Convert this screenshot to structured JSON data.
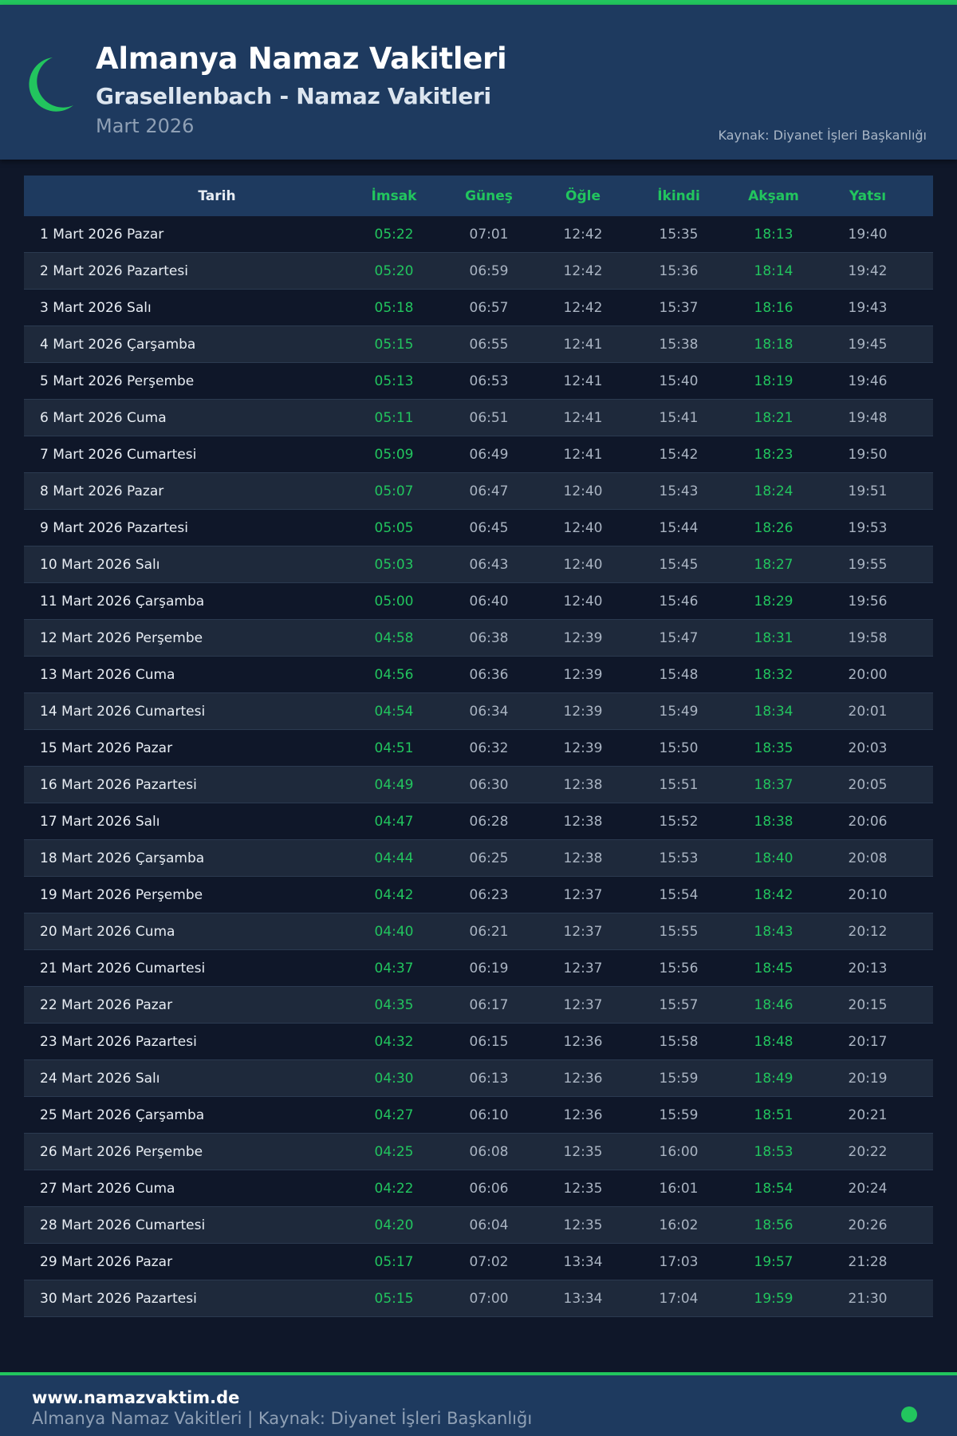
{
  "colors": {
    "accent": "#22c55e",
    "header_bg": "#1e3a5f",
    "page_bg": "#0f1729"
  },
  "header": {
    "icon": "crescent-moon-icon",
    "title": "Almanya Namaz Vakitleri",
    "subtitle": "Grasellenbach - Namaz Vakitleri",
    "month": "Mart 2026",
    "source": "Kaynak: Diyanet İşleri Başkanlığı"
  },
  "table": {
    "columns": [
      "Tarih",
      "İmsak",
      "Güneş",
      "Öğle",
      "İkindi",
      "Akşam",
      "Yatsı"
    ],
    "rows": [
      [
        "1 Mart 2026 Pazar",
        "05:22",
        "07:01",
        "12:42",
        "15:35",
        "18:13",
        "19:40"
      ],
      [
        "2 Mart 2026 Pazartesi",
        "05:20",
        "06:59",
        "12:42",
        "15:36",
        "18:14",
        "19:42"
      ],
      [
        "3 Mart 2026 Salı",
        "05:18",
        "06:57",
        "12:42",
        "15:37",
        "18:16",
        "19:43"
      ],
      [
        "4 Mart 2026 Çarşamba",
        "05:15",
        "06:55",
        "12:41",
        "15:38",
        "18:18",
        "19:45"
      ],
      [
        "5 Mart 2026 Perşembe",
        "05:13",
        "06:53",
        "12:41",
        "15:40",
        "18:19",
        "19:46"
      ],
      [
        "6 Mart 2026 Cuma",
        "05:11",
        "06:51",
        "12:41",
        "15:41",
        "18:21",
        "19:48"
      ],
      [
        "7 Mart 2026 Cumartesi",
        "05:09",
        "06:49",
        "12:41",
        "15:42",
        "18:23",
        "19:50"
      ],
      [
        "8 Mart 2026 Pazar",
        "05:07",
        "06:47",
        "12:40",
        "15:43",
        "18:24",
        "19:51"
      ],
      [
        "9 Mart 2026 Pazartesi",
        "05:05",
        "06:45",
        "12:40",
        "15:44",
        "18:26",
        "19:53"
      ],
      [
        "10 Mart 2026 Salı",
        "05:03",
        "06:43",
        "12:40",
        "15:45",
        "18:27",
        "19:55"
      ],
      [
        "11 Mart 2026 Çarşamba",
        "05:00",
        "06:40",
        "12:40",
        "15:46",
        "18:29",
        "19:56"
      ],
      [
        "12 Mart 2026 Perşembe",
        "04:58",
        "06:38",
        "12:39",
        "15:47",
        "18:31",
        "19:58"
      ],
      [
        "13 Mart 2026 Cuma",
        "04:56",
        "06:36",
        "12:39",
        "15:48",
        "18:32",
        "20:00"
      ],
      [
        "14 Mart 2026 Cumartesi",
        "04:54",
        "06:34",
        "12:39",
        "15:49",
        "18:34",
        "20:01"
      ],
      [
        "15 Mart 2026 Pazar",
        "04:51",
        "06:32",
        "12:39",
        "15:50",
        "18:35",
        "20:03"
      ],
      [
        "16 Mart 2026 Pazartesi",
        "04:49",
        "06:30",
        "12:38",
        "15:51",
        "18:37",
        "20:05"
      ],
      [
        "17 Mart 2026 Salı",
        "04:47",
        "06:28",
        "12:38",
        "15:52",
        "18:38",
        "20:06"
      ],
      [
        "18 Mart 2026 Çarşamba",
        "04:44",
        "06:25",
        "12:38",
        "15:53",
        "18:40",
        "20:08"
      ],
      [
        "19 Mart 2026 Perşembe",
        "04:42",
        "06:23",
        "12:37",
        "15:54",
        "18:42",
        "20:10"
      ],
      [
        "20 Mart 2026 Cuma",
        "04:40",
        "06:21",
        "12:37",
        "15:55",
        "18:43",
        "20:12"
      ],
      [
        "21 Mart 2026 Cumartesi",
        "04:37",
        "06:19",
        "12:37",
        "15:56",
        "18:45",
        "20:13"
      ],
      [
        "22 Mart 2026 Pazar",
        "04:35",
        "06:17",
        "12:37",
        "15:57",
        "18:46",
        "20:15"
      ],
      [
        "23 Mart 2026 Pazartesi",
        "04:32",
        "06:15",
        "12:36",
        "15:58",
        "18:48",
        "20:17"
      ],
      [
        "24 Mart 2026 Salı",
        "04:30",
        "06:13",
        "12:36",
        "15:59",
        "18:49",
        "20:19"
      ],
      [
        "25 Mart 2026 Çarşamba",
        "04:27",
        "06:10",
        "12:36",
        "15:59",
        "18:51",
        "20:21"
      ],
      [
        "26 Mart 2026 Perşembe",
        "04:25",
        "06:08",
        "12:35",
        "16:00",
        "18:53",
        "20:22"
      ],
      [
        "27 Mart 2026 Cuma",
        "04:22",
        "06:06",
        "12:35",
        "16:01",
        "18:54",
        "20:24"
      ],
      [
        "28 Mart 2026 Cumartesi",
        "04:20",
        "06:04",
        "12:35",
        "16:02",
        "18:56",
        "20:26"
      ],
      [
        "29 Mart 2026 Pazar",
        "05:17",
        "07:02",
        "13:34",
        "17:03",
        "19:57",
        "21:28"
      ],
      [
        "30 Mart 2026 Pazartesi",
        "05:15",
        "07:00",
        "13:34",
        "17:04",
        "19:59",
        "21:30"
      ]
    ]
  },
  "footer": {
    "site": "www.namazvaktim.de",
    "text": "Almanya Namaz Vakitleri | Kaynak: Diyanet İşleri Başkanlığı"
  }
}
